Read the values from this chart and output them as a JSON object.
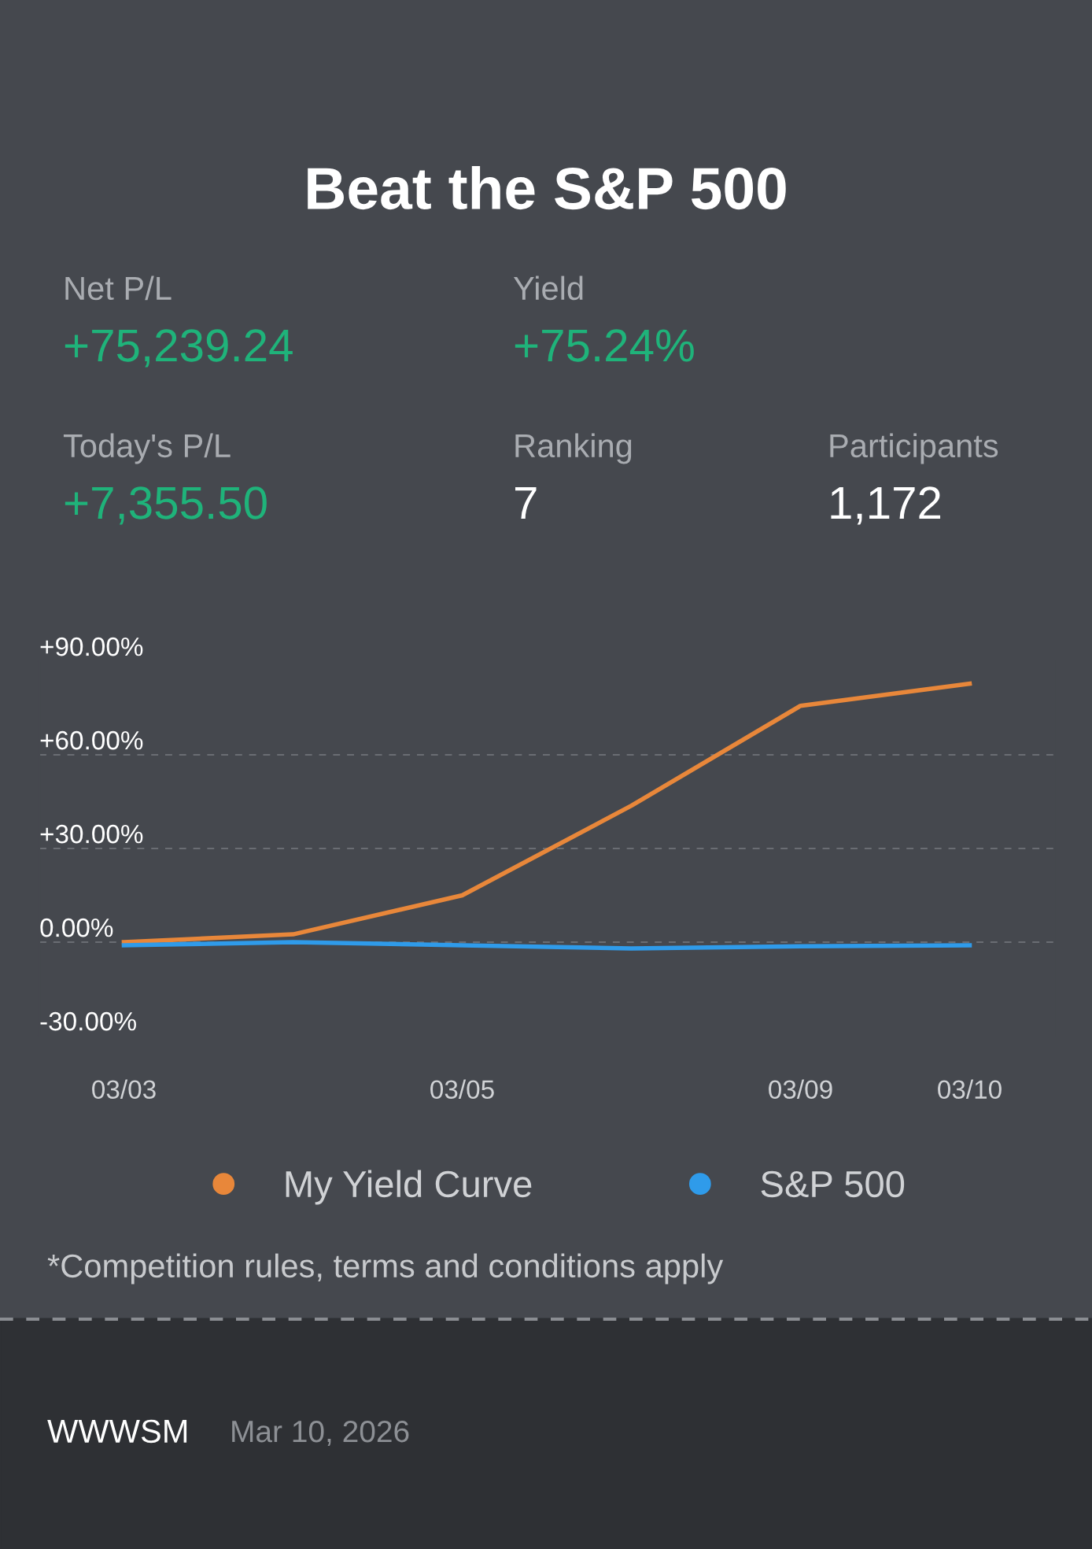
{
  "chart_data": {
    "type": "line",
    "title": "Beat the S&P 500",
    "categories": [
      "03/03",
      null,
      "03/05",
      null,
      "03/09",
      "03/10"
    ],
    "series": [
      {
        "name": "My Yield Curve",
        "color": "#e8873a",
        "values": [
          0,
          2.5,
          15,
          43.7,
          75.7,
          82.8
        ]
      },
      {
        "name": "S&P 500",
        "color": "#2f9bea",
        "values": [
          -1,
          0,
          -1,
          -2,
          -1.3,
          -1
        ]
      }
    ],
    "ylim": [
      -30,
      90
    ],
    "yticks": [
      {
        "value": -30,
        "label": "-30.00%"
      },
      {
        "value": 0,
        "label": "0.00%"
      },
      {
        "value": 30,
        "label": "+30.00%"
      },
      {
        "value": 60,
        "label": "+60.00%"
      },
      {
        "value": 90,
        "label": "+90.00%"
      }
    ],
    "grid": "y",
    "legend": "bottom",
    "marker": "none",
    "line_style": "solid",
    "annotations": [
      "Net P/L",
      "+75,239.24",
      "Yield",
      "+75.24%",
      "Today's P/L",
      "+7,355.50",
      "Ranking",
      "7",
      "Participants",
      "1,172",
      "*Competition rules, terms and conditions apply",
      "WWWSM",
      "Mar 10, 2026"
    ]
  }
}
